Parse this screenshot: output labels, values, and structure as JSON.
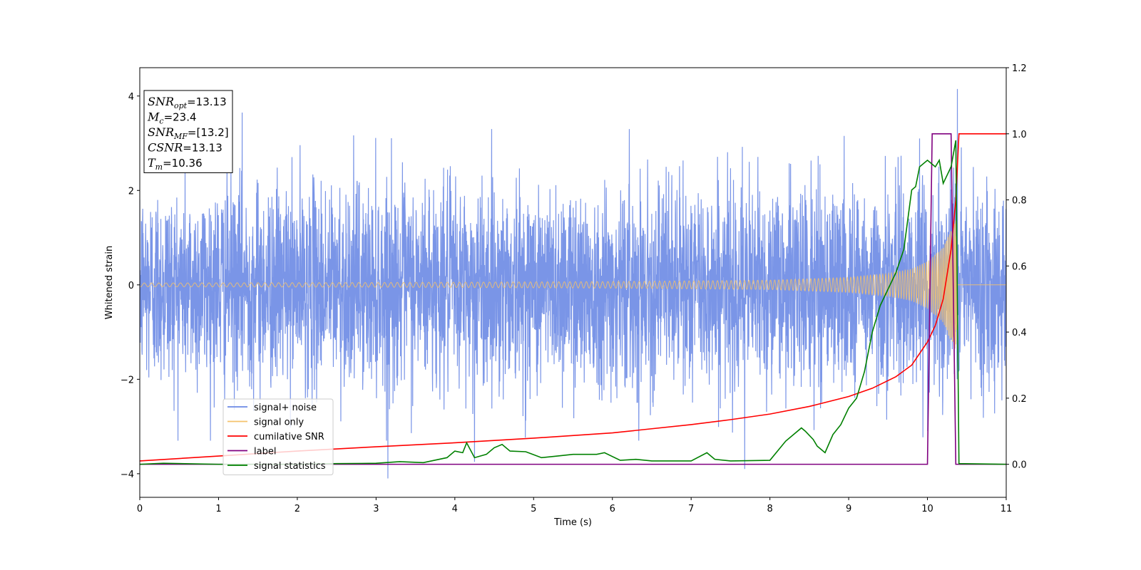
{
  "chart_data": {
    "type": "line",
    "title": "",
    "xlabel": "Time (s)",
    "ylabel": "Whitened strain",
    "xlim": [
      0,
      11
    ],
    "ylim": [
      -4.5,
      4.6
    ],
    "y2lim": [
      -0.1,
      1.2
    ],
    "xticks": [
      "0",
      "1",
      "2",
      "3",
      "4",
      "5",
      "6",
      "7",
      "8",
      "9",
      "10",
      "11"
    ],
    "yticks": [
      "4",
      "2",
      "0",
      "−2",
      "−4"
    ],
    "y2ticks": [
      "1.2",
      "1.0",
      "0.8",
      "0.6",
      "0.4",
      "0.2",
      "0.0"
    ],
    "grid": false,
    "legend_position": "lower-left",
    "series": [
      {
        "name": "signal+ noise",
        "axis": "left",
        "color": "#6c8ae4",
        "description_points": {
          "x": [
            0,
            1.3,
            3.15,
            4.25,
            7.68,
            9.9,
            10.38,
            11
          ],
          "y": [
            1.8,
            3.65,
            -4.1,
            -3.75,
            -3.9,
            3.1,
            4.15,
            1.5
          ]
        }
      },
      {
        "name": "signal only",
        "axis": "left",
        "color": "#f5c26b",
        "amplitude": {
          "x": [
            0,
            3,
            6,
            8,
            9,
            9.5,
            9.8,
            10.0,
            10.2,
            10.3,
            10.36,
            10.4,
            11
          ],
          "y": [
            0.04,
            0.05,
            0.07,
            0.1,
            0.16,
            0.24,
            0.34,
            0.5,
            0.8,
            1.2,
            1.4,
            0,
            0
          ]
        }
      },
      {
        "name": "cumilative SNR",
        "axis": "right",
        "color": "#ff0000",
        "x": [
          0,
          1,
          2,
          3,
          4,
          5,
          6,
          7,
          7.5,
          8,
          8.5,
          9,
          9.3,
          9.6,
          9.8,
          10.0,
          10.1,
          10.2,
          10.3,
          10.36,
          10.4,
          11
        ],
        "y": [
          0.01,
          0.025,
          0.04,
          0.053,
          0.065,
          0.079,
          0.095,
          0.12,
          0.135,
          0.152,
          0.175,
          0.205,
          0.23,
          0.265,
          0.3,
          0.37,
          0.42,
          0.5,
          0.65,
          0.8,
          1.0,
          1.0
        ]
      },
      {
        "name": "label",
        "axis": "right",
        "color": "#800080",
        "x": [
          0,
          10.0,
          10.06,
          10.3,
          10.36,
          11
        ],
        "y": [
          0,
          0,
          1,
          1,
          0,
          0
        ]
      },
      {
        "name": "signal statistics",
        "axis": "right",
        "color": "#008000",
        "x": [
          0,
          0.3,
          1,
          2,
          2.5,
          3,
          3.3,
          3.6,
          3.9,
          4.0,
          4.1,
          4.15,
          4.25,
          4.4,
          4.5,
          4.6,
          4.7,
          4.9,
          5.1,
          5.3,
          5.5,
          5.8,
          5.9,
          6.1,
          6.3,
          6.5,
          7.0,
          7.2,
          7.3,
          7.5,
          8.0,
          8.2,
          8.3,
          8.4,
          8.45,
          8.55,
          8.6,
          8.7,
          8.8,
          8.9,
          9.0,
          9.1,
          9.2,
          9.3,
          9.4,
          9.5,
          9.6,
          9.7,
          9.8,
          9.85,
          9.9,
          10.0,
          10.1,
          10.15,
          10.2,
          10.3,
          10.36,
          10.4,
          11
        ],
        "y": [
          0,
          0.003,
          0,
          0,
          0.002,
          0.003,
          0.008,
          0.005,
          0.02,
          0.04,
          0.035,
          0.065,
          0.02,
          0.03,
          0.05,
          0.06,
          0.04,
          0.038,
          0.02,
          0.025,
          0.03,
          0.03,
          0.035,
          0.012,
          0.015,
          0.01,
          0.01,
          0.035,
          0.015,
          0.01,
          0.012,
          0.07,
          0.09,
          0.11,
          0.1,
          0.075,
          0.055,
          0.035,
          0.09,
          0.12,
          0.17,
          0.2,
          0.28,
          0.4,
          0.48,
          0.53,
          0.58,
          0.65,
          0.83,
          0.84,
          0.9,
          0.92,
          0.9,
          0.92,
          0.85,
          0.9,
          0.98,
          0.002,
          0
        ]
      }
    ],
    "annotation": {
      "lines": [
        {
          "base": "SNR",
          "sub": "opt",
          "value": "=13.13"
        },
        {
          "base": "M",
          "sub": "c",
          "value": "=23.4"
        },
        {
          "base": "SNR",
          "sub": "MF",
          "value": "=[13.2]"
        },
        {
          "base": "CSNR",
          "sub": "",
          "value": "=13.13"
        },
        {
          "base": "T",
          "sub": "m",
          "value": "=10.36"
        }
      ]
    }
  }
}
